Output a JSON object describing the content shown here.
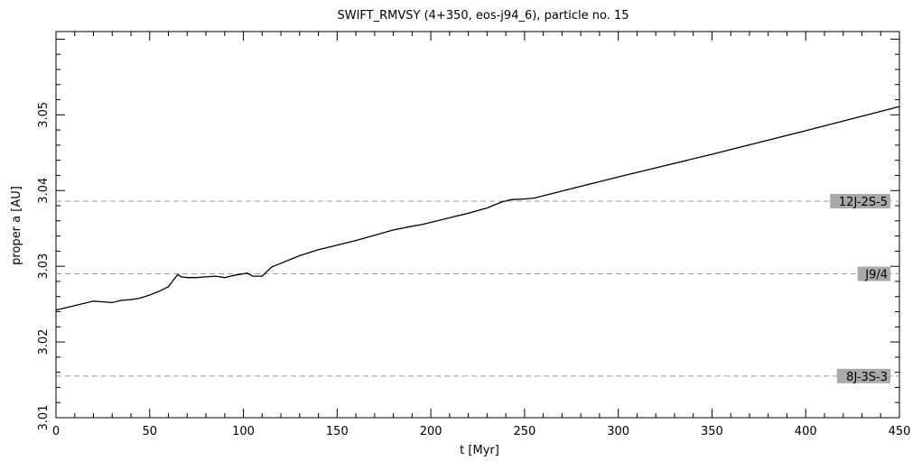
{
  "chart_data": {
    "type": "line",
    "title": "SWIFT_RMVSY (4+350, eos-j94_6), particle no. 15",
    "xlabel": "t [Myr]",
    "ylabel": "proper a [AU]",
    "xlim": [
      0,
      450
    ],
    "ylim": [
      3.01,
      3.061
    ],
    "xticks": [
      0,
      50,
      100,
      150,
      200,
      250,
      300,
      350,
      400,
      450
    ],
    "xtick_labels": [
      "0",
      "50",
      "100",
      "150",
      "200",
      "250",
      "300",
      "350",
      "400",
      "450"
    ],
    "yticks": [
      3.01,
      3.02,
      3.03,
      3.04,
      3.05
    ],
    "ytick_labels": [
      "3.01",
      "3.02",
      "3.03",
      "3.04",
      "3.05"
    ],
    "resonances": [
      {
        "label": "12J-2S-5",
        "value": 3.0386
      },
      {
        "label": "J9/4",
        "value": 3.029
      },
      {
        "label": "8J-3S-3",
        "value": 3.0155
      }
    ],
    "series": [
      {
        "x": [
          0,
          10,
          20,
          25,
          30,
          35,
          40,
          45,
          50,
          55,
          60,
          63,
          65,
          67,
          70,
          75,
          80,
          85,
          90,
          95,
          100,
          102,
          105,
          110,
          115,
          120,
          125,
          130,
          135,
          140,
          150,
          160,
          170,
          180,
          190,
          195,
          200,
          210,
          220,
          230,
          238,
          243,
          250,
          255,
          300,
          350,
          400,
          450
        ],
        "y": [
          3.0242,
          3.0248,
          3.0254,
          3.0253,
          3.0252,
          3.0255,
          3.0256,
          3.0258,
          3.0262,
          3.0267,
          3.0273,
          3.0283,
          3.0289,
          3.0286,
          3.0285,
          3.0285,
          3.0286,
          3.0287,
          3.0285,
          3.0288,
          3.029,
          3.0291,
          3.0287,
          3.0287,
          3.0299,
          3.0304,
          3.0309,
          3.0314,
          3.0318,
          3.0322,
          3.0328,
          3.0334,
          3.0341,
          3.0348,
          3.0353,
          3.0355,
          3.0358,
          3.0364,
          3.037,
          3.0377,
          3.0385,
          3.0388,
          3.0389,
          3.039,
          3.0418,
          3.0448,
          3.0479,
          3.0511
        ]
      }
    ],
    "grid": false,
    "legend": "none"
  }
}
